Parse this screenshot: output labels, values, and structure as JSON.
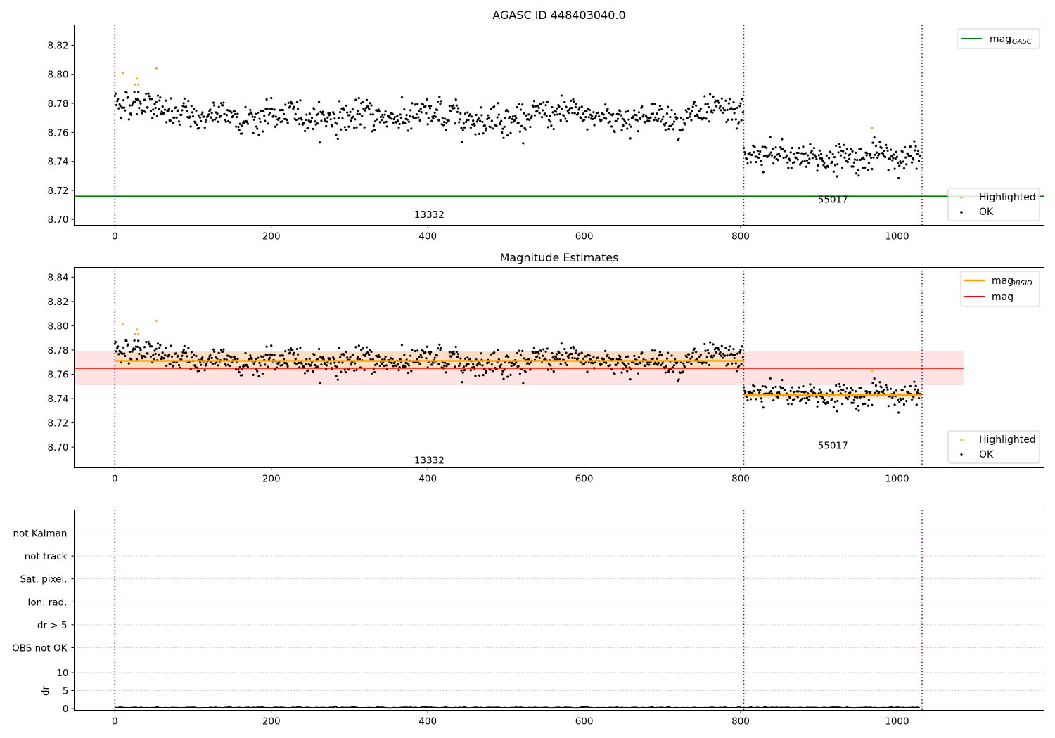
{
  "figure": {
    "colors": {
      "ok": "#000000",
      "highlighted": "#ffa500",
      "mag_agasc": "#008000",
      "mag_obsid": "#ffa500",
      "mag": "#ff0000",
      "band_mag": "#ffcccc",
      "band_obsid": "#ffd8b0",
      "obsid_divider": "#800080",
      "grid": "#b0b0b0"
    }
  },
  "chart_data": [
    {
      "type": "scatter",
      "title": "AGASC ID 448403040.0",
      "xlim": [
        -52,
        1188
      ],
      "ylim": [
        8.696,
        8.834
      ],
      "x_ticks": [
        0,
        200,
        400,
        600,
        800,
        1000
      ],
      "y_ticks": [
        8.7,
        8.72,
        8.74,
        8.76,
        8.78,
        8.8,
        8.82
      ],
      "obsid_boundaries": [
        0,
        804,
        1032
      ],
      "obsid_labels": [
        {
          "text": "13332",
          "x": 402,
          "y": 8.701
        },
        {
          "text": "55017",
          "x": 918,
          "y": 8.7115
        }
      ],
      "mag_agasc": 8.716,
      "legend_top": [
        {
          "name": "mag",
          "sub": "AGASC",
          "color": "#008000"
        }
      ],
      "legend_bottom": [
        {
          "name": "Highlighted",
          "color": "#ffa500"
        },
        {
          "name": "OK",
          "color": "#000000"
        }
      ],
      "series_trend": {
        "segments": [
          {
            "x_start": 0,
            "x_end": 804,
            "level": 8.771
          },
          {
            "x_start": 804,
            "x_end": 1032,
            "level": 8.743
          }
        ],
        "scatter_sd": 0.0085,
        "point_count": 1030
      },
      "highlighted_points": [
        {
          "x": 10,
          "y": 8.801
        },
        {
          "x": 26,
          "y": 8.793
        },
        {
          "x": 28,
          "y": 8.797
        },
        {
          "x": 30,
          "y": 8.793
        },
        {
          "x": 53,
          "y": 8.804
        },
        {
          "x": 968,
          "y": 8.763
        }
      ]
    },
    {
      "type": "scatter",
      "title": "Magnitude Estimates",
      "xlim": [
        -52,
        1188
      ],
      "ylim": [
        8.683,
        8.848
      ],
      "x_ticks": [
        0,
        200,
        400,
        600,
        800,
        1000
      ],
      "y_ticks": [
        8.7,
        8.72,
        8.74,
        8.76,
        8.78,
        8.8,
        8.82,
        8.84
      ],
      "obsid_boundaries": [
        0,
        804,
        1032
      ],
      "obsid_labels": [
        {
          "text": "13332",
          "x": 402,
          "y": 8.6865
        },
        {
          "text": "55017",
          "x": 918,
          "y": 8.6985
        }
      ],
      "mag": {
        "value": 8.765,
        "band": [
          8.751,
          8.779
        ],
        "x_start": -52,
        "x_end": 1085
      },
      "mag_obsid": [
        {
          "x_start": 0,
          "x_end": 804,
          "value": 8.771,
          "band": [
            8.763,
            8.779
          ]
        },
        {
          "x_start": 804,
          "x_end": 1032,
          "value": 8.743,
          "band": [
            8.74,
            8.746
          ]
        }
      ],
      "legend_top": [
        {
          "name": "mag",
          "sub": "OBSID",
          "color": "#ffa500"
        },
        {
          "name": "mag",
          "sub": "",
          "color": "#ff0000"
        }
      ],
      "legend_bottom": [
        {
          "name": "Highlighted",
          "color": "#ffa500"
        },
        {
          "name": "OK",
          "color": "#000000"
        }
      ]
    },
    {
      "type": "scatter",
      "title": "",
      "xlim": [
        -52,
        1188
      ],
      "flag_labels": [
        "not Kalman",
        "not track",
        "Sat. pixel.",
        "Ion. rad.",
        "dr > 5",
        "OBS not OK"
      ],
      "obsid_boundaries": [
        0,
        804,
        1032
      ]
    },
    {
      "type": "line",
      "title": "",
      "ylabel": "dr",
      "xlim": [
        -52,
        1188
      ],
      "ylim": [
        -0.5,
        10.5
      ],
      "x_ticks": [
        0,
        200,
        400,
        600,
        800,
        1000
      ],
      "y_ticks": [
        0,
        5,
        10
      ],
      "obsid_boundaries": [
        0,
        804,
        1032
      ],
      "dr_typical": 0.15
    }
  ]
}
